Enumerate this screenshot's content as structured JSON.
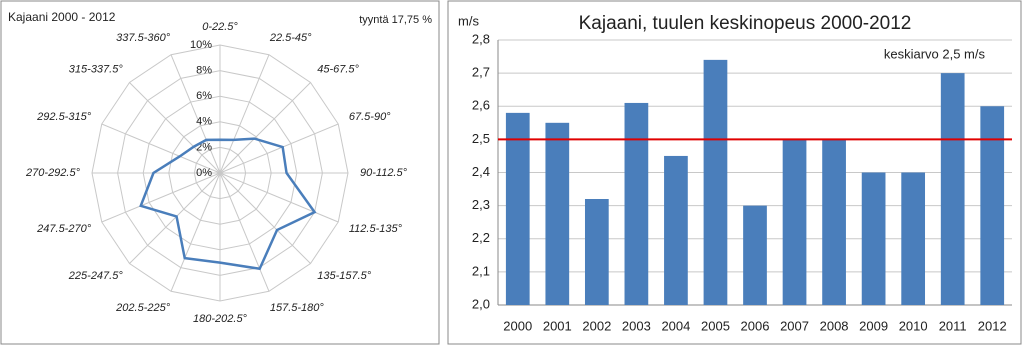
{
  "chart_data": [
    {
      "type": "radar",
      "title": "Kajaani 2000 - 2012",
      "annotation": "tyyntä 17,75 %",
      "categories": [
        "0-22.5°",
        "22.5-45°",
        "45-67.5°",
        "67.5-90°",
        "90-112.5°",
        "112.5-135°",
        "135-157.5°",
        "157.5-180°",
        "180-202.5°",
        "202.5-225°",
        "225-247.5°",
        "247.5-270°",
        "270-292.5°",
        "292.5-315°",
        "315-337.5°",
        "337.5-360°"
      ],
      "values": [
        2.6,
        2.8,
        3.8,
        5.3,
        5.2,
        8.0,
        6.3,
        8.1,
        7.0,
        7.2,
        4.8,
        6.7,
        5.2,
        3.4,
        2.9,
        2.8
      ],
      "color": "#4a7ebb",
      "ylim": [
        0,
        10
      ],
      "yticks": [
        {
          "value": 0,
          "label": "0%"
        },
        {
          "value": 2,
          "label": "2%"
        },
        {
          "value": 4,
          "label": "4%"
        },
        {
          "value": 6,
          "label": "6%"
        },
        {
          "value": 8,
          "label": "8%"
        },
        {
          "value": 10,
          "label": "10%"
        }
      ],
      "grid": true
    },
    {
      "type": "bar",
      "title": "Kajaani, tuulen keskinopeus 2000-2012",
      "y_label": "m/s",
      "annotation": "keskiarvo 2,5 m/s",
      "categories": [
        "2000",
        "2001",
        "2002",
        "2003",
        "2004",
        "2005",
        "2006",
        "2007",
        "2008",
        "2009",
        "2010",
        "2011",
        "2012"
      ],
      "values": [
        2.58,
        2.55,
        2.32,
        2.61,
        2.45,
        2.74,
        2.3,
        2.5,
        2.5,
        2.4,
        2.4,
        2.7,
        2.6
      ],
      "color": "#4a7ebb",
      "reference_line": 2.5,
      "reference_color": "#e00000",
      "ylim": [
        2.0,
        2.8
      ],
      "yticks": [
        {
          "value": 2.0,
          "label": "2,0"
        },
        {
          "value": 2.1,
          "label": "2,1"
        },
        {
          "value": 2.2,
          "label": "2,2"
        },
        {
          "value": 2.3,
          "label": "2,3"
        },
        {
          "value": 2.4,
          "label": "2,4"
        },
        {
          "value": 2.5,
          "label": "2,5"
        },
        {
          "value": 2.6,
          "label": "2,6"
        },
        {
          "value": 2.7,
          "label": "2,7"
        },
        {
          "value": 2.8,
          "label": "2,8"
        }
      ],
      "grid": true
    }
  ]
}
